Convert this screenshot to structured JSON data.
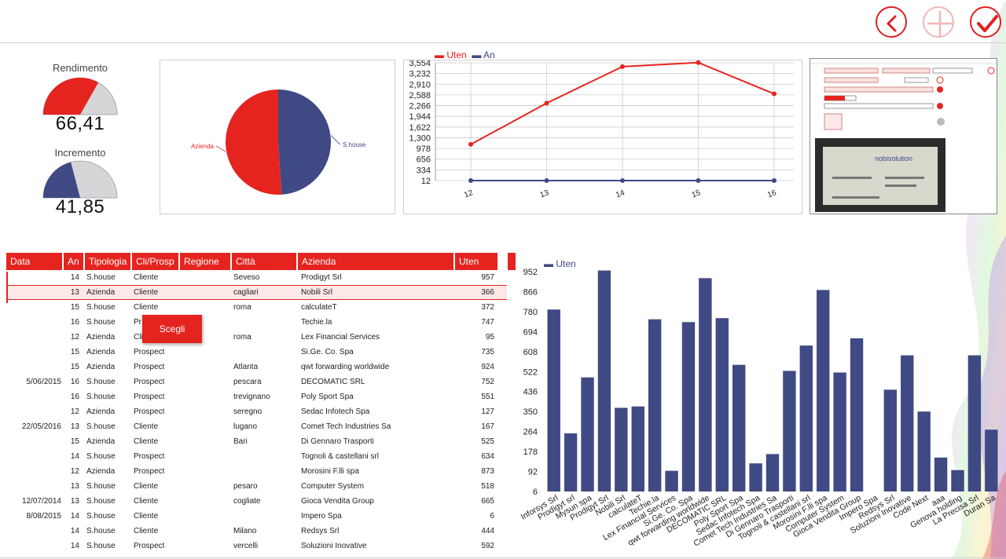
{
  "header": {
    "back_label": "back",
    "add_label": "add",
    "confirm_label": "confirm"
  },
  "gauges": [
    {
      "title": "Rendimento",
      "value": "66,41",
      "fraction": 0.6641,
      "color": "#e52420"
    },
    {
      "title": "Incremento",
      "value": "41,85",
      "fraction": 0.4185,
      "color": "#3f4a85"
    }
  ],
  "pie": {
    "chart_data": {
      "type": "pie",
      "labels": [
        "Azienda",
        "S.house"
      ],
      "values": [
        51,
        49
      ],
      "colors": [
        "#e52420",
        "#3f4a85"
      ]
    }
  },
  "line": {
    "legend": [
      {
        "name": "Uten",
        "color": "#e52420"
      },
      {
        "name": "An",
        "color": "#3f4a85"
      }
    ],
    "chart_data": {
      "type": "line",
      "categories": [
        "12",
        "13",
        "14",
        "15",
        "16"
      ],
      "series": [
        {
          "name": "Uten",
          "values": [
            1100,
            2340,
            3440,
            3560,
            2620
          ],
          "color": "#e52420"
        },
        {
          "name": "An",
          "values": [
            12,
            13,
            14,
            15,
            16
          ],
          "color": "#3f4a85"
        }
      ],
      "yticks": [
        "12",
        "334",
        "656",
        "978",
        "1,300",
        "1,622",
        "1,944",
        "2,266",
        "2,588",
        "2,910",
        "3,232",
        "3,554"
      ],
      "ylim": [
        12,
        3554
      ]
    }
  },
  "table": {
    "columns": [
      "Data",
      "An",
      "Tipologia",
      "Cli/Prosp",
      "Regione",
      "Città",
      "Azienda",
      "Uten"
    ],
    "rows": [
      {
        "data": "",
        "an": "14",
        "tip": "S.house",
        "cli": "Cliente",
        "reg": "",
        "citta": "Seveso",
        "azienda": "Prodigyt Srl",
        "uten": "957"
      },
      {
        "data": "",
        "an": "13",
        "tip": "Azienda",
        "cli": "Cliente",
        "reg": "",
        "citta": "cagliari",
        "azienda": "Nobili Srl",
        "uten": "366"
      },
      {
        "data": "",
        "an": "15",
        "tip": "S.house",
        "cli": "Cliente",
        "reg": "",
        "citta": "roma",
        "azienda": "calculateT",
        "uten": "372"
      },
      {
        "data": "",
        "an": "16",
        "tip": "S.house",
        "cli": "Pr",
        "reg": "",
        "citta": "",
        "azienda": "Techie.la",
        "uten": "747"
      },
      {
        "data": "",
        "an": "12",
        "tip": "Azienda",
        "cli": "Cli",
        "reg": "",
        "citta": "roma",
        "azienda": "Lex   Financial Services",
        "uten": "95"
      },
      {
        "data": "",
        "an": "15",
        "tip": "Azienda",
        "cli": "Prospect",
        "reg": "",
        "citta": "",
        "azienda": "Si.Ge. Co. Spa",
        "uten": "735"
      },
      {
        "data": "",
        "an": "15",
        "tip": "Azienda",
        "cli": "Prospect",
        "reg": "",
        "citta": "Atlanta",
        "azienda": "qwt forwarding worldwide",
        "uten": "924"
      },
      {
        "data": "5/06/2015",
        "an": "16",
        "tip": "S.house",
        "cli": "Prospect",
        "reg": "",
        "citta": "pescara",
        "azienda": "DECOMATIC SRL",
        "uten": "752"
      },
      {
        "data": "",
        "an": "16",
        "tip": "S.house",
        "cli": "Prospect",
        "reg": "",
        "citta": "trevignano",
        "azienda": "Poly  Sport Spa",
        "uten": "551"
      },
      {
        "data": "",
        "an": "12",
        "tip": "Azienda",
        "cli": "Prospect",
        "reg": "",
        "citta": "seregno",
        "azienda": "Sedac Infotech Spa",
        "uten": "127"
      },
      {
        "data": "22/05/2016",
        "an": "13",
        "tip": "S.house",
        "cli": "Cliente",
        "reg": "",
        "citta": "lugano",
        "azienda": "Comet Tech Industries Sa",
        "uten": "167"
      },
      {
        "data": "",
        "an": "15",
        "tip": "Azienda",
        "cli": "Cliente",
        "reg": "",
        "citta": "Bari",
        "azienda": "Di Gennaro Trasporti",
        "uten": "525"
      },
      {
        "data": "",
        "an": "14",
        "tip": "S.house",
        "cli": "Prospect",
        "reg": "",
        "citta": "",
        "azienda": "Tognoli & castellani srl",
        "uten": "634"
      },
      {
        "data": "",
        "an": "12",
        "tip": "Azienda",
        "cli": "Prospect",
        "reg": "",
        "citta": "",
        "azienda": "Morosini F.lli spa",
        "uten": "873"
      },
      {
        "data": "",
        "an": "13",
        "tip": "S.house",
        "cli": "Cliente",
        "reg": "",
        "citta": "pesaro",
        "azienda": "Computer System",
        "uten": "518"
      },
      {
        "data": "12/07/2014",
        "an": "13",
        "tip": "S.house",
        "cli": "Cliente",
        "reg": "",
        "citta": "cogliate",
        "azienda": "Gioca Vendita Group",
        "uten": "665"
      },
      {
        "data": "8/08/2015",
        "an": "14",
        "tip": "S.house",
        "cli": "Cliente",
        "reg": "",
        "citta": "",
        "azienda": "Impero Spa",
        "uten": "6"
      },
      {
        "data": "",
        "an": "14",
        "tip": "S.house",
        "cli": "Cliente",
        "reg": "",
        "citta": "Milano",
        "azienda": "Redsys Srl",
        "uten": "444"
      },
      {
        "data": "",
        "an": "14",
        "tip": "S.house",
        "cli": "Prospect",
        "reg": "",
        "citta": "vercelli",
        "azienda": "Soluzioni Inovative",
        "uten": "592"
      }
    ]
  },
  "context_menu": {
    "item": "Scegli"
  },
  "bar": {
    "legend": [
      {
        "name": "Uten",
        "color": "#3f4a85"
      }
    ],
    "chart_data": {
      "type": "bar",
      "categories": [
        "Inforsys Srl",
        "Prodigyt srl",
        "Mysun spa",
        "Prodigyt Srl",
        "Nobili Srl",
        "calculateT",
        "Techie.la",
        "Lex   Financial Services",
        "Si.Ge. Co. Spa",
        "qwt forwarding worldwide",
        "DECOMATIC SRL",
        "Poly  Sport Spa",
        "Sedac Infotech Spa",
        "Comet Tech Industries Sa",
        "Di Gennaro Trasporti",
        "Tognoli & castellani srl",
        "Morosini F.lli spa",
        "Computer System",
        "Gioca Vendita Group",
        "Impero Spa",
        "Redsys Srl",
        "Soluzioni Inovative",
        "Code Next",
        "aaa",
        "Genova holding",
        "La Precisa Srl",
        "Duran Sa"
      ],
      "series": [
        {
          "name": "Uten",
          "values": [
            789,
            256,
            497,
            957,
            366,
            372,
            747,
            95,
            735,
            924,
            752,
            551,
            127,
            167,
            525,
            634,
            873,
            518,
            665,
            6,
            444,
            592,
            350,
            152,
            98,
            592,
            272
          ]
        }
      ],
      "yticks": [
        "6",
        "92",
        "178",
        "264",
        "350",
        "436",
        "522",
        "608",
        "694",
        "780",
        "866",
        "952"
      ],
      "ylim": [
        6,
        952
      ],
      "color": "#3f4a85"
    }
  },
  "card_preview": {
    "fields": [
      "Nome",
      "Nobili Srl",
      "cagliari",
      "Nome",
      "Nobile Nobil",
      "Tipo",
      "Mail",
      "Colore",
      "Descr",
      "Foto",
      "Foglio doc"
    ],
    "card_brand": "nobisolution"
  }
}
